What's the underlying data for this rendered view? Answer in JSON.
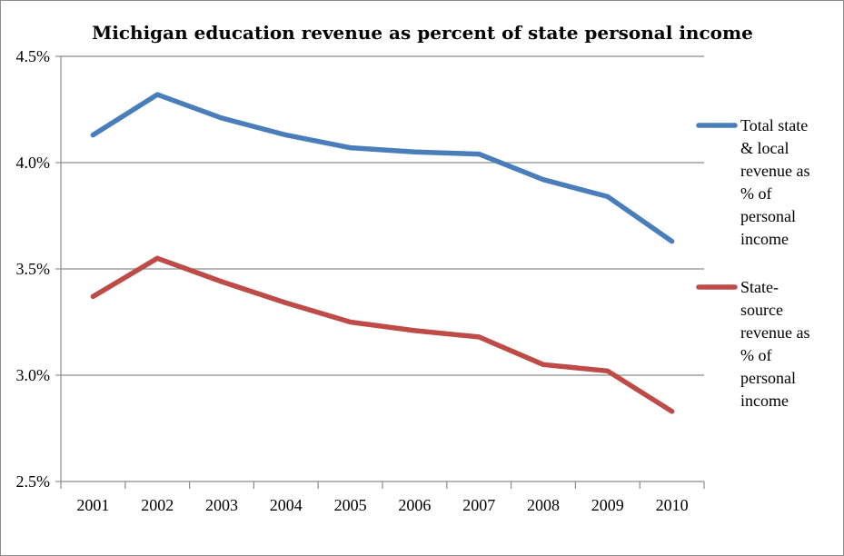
{
  "chart_data": {
    "type": "line",
    "title": "Michigan education revenue as percent of state personal income",
    "xlabel": "",
    "ylabel": "",
    "categories": [
      "2001",
      "2002",
      "2003",
      "2004",
      "2005",
      "2006",
      "2007",
      "2008",
      "2009",
      "2010"
    ],
    "ylim": [
      2.5,
      4.5
    ],
    "yticks": [
      "2.5%",
      "3.0%",
      "3.5%",
      "4.0%",
      "4.5%"
    ],
    "ytick_values": [
      2.5,
      3.0,
      3.5,
      4.0,
      4.5
    ],
    "grid": true,
    "legend_position": "right",
    "series": [
      {
        "name": "Total state & local revenue as % of personal income",
        "legend_lines": [
          "Total state",
          "& local",
          "revenue as",
          "% of",
          "personal",
          "income"
        ],
        "color": "#4a7ebb",
        "values": [
          4.13,
          4.32,
          4.21,
          4.13,
          4.07,
          4.05,
          4.04,
          3.92,
          3.84,
          3.63
        ]
      },
      {
        "name": "State-source revenue as % of personal income",
        "legend_lines": [
          "State-",
          "source",
          "revenue as",
          "% of",
          "personal",
          "income"
        ],
        "color": "#be4b48",
        "values": [
          3.37,
          3.55,
          3.44,
          3.34,
          3.25,
          3.21,
          3.18,
          3.05,
          3.02,
          2.83
        ]
      }
    ]
  }
}
